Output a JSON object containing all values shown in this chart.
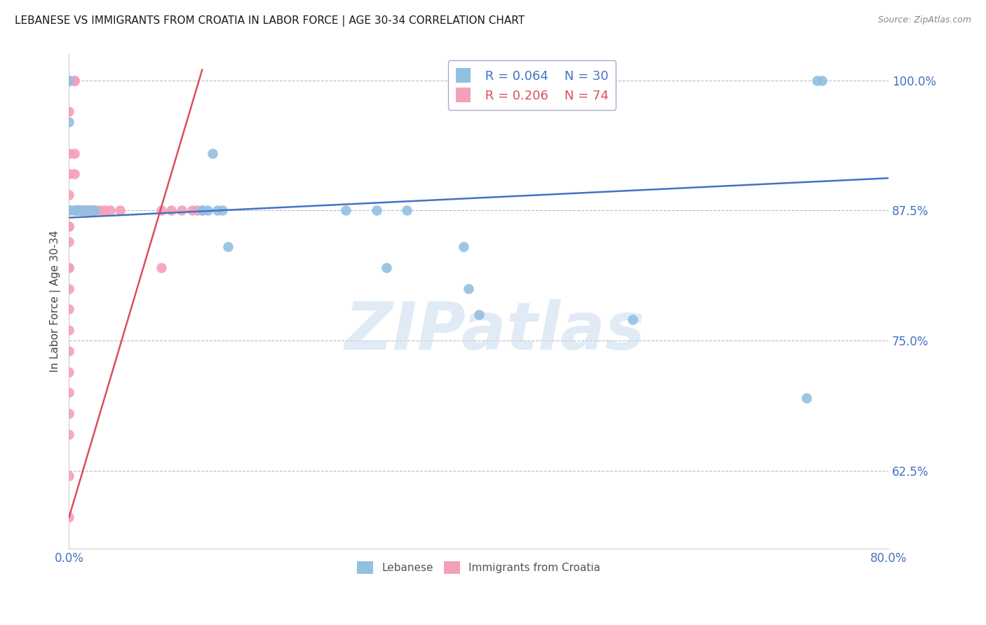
{
  "title": "LEBANESE VS IMMIGRANTS FROM CROATIA IN LABOR FORCE | AGE 30-34 CORRELATION CHART",
  "source": "Source: ZipAtlas.com",
  "ylabel": "In Labor Force | Age 30-34",
  "watermark": "ZIPatlas",
  "x_min": 0.0,
  "x_max": 0.8,
  "y_min": 0.55,
  "y_max": 1.025,
  "x_ticks": [
    0.0,
    0.1,
    0.2,
    0.3,
    0.4,
    0.5,
    0.6,
    0.7,
    0.8
  ],
  "x_tick_labels": [
    "0.0%",
    "",
    "",
    "",
    "",
    "",
    "",
    "",
    "80.0%"
  ],
  "y_ticks": [
    0.625,
    0.75,
    0.875,
    1.0
  ],
  "y_tick_labels": [
    "62.5%",
    "75.0%",
    "87.5%",
    "100.0%"
  ],
  "legend_blue_r": "R = 0.064",
  "legend_blue_n": "N = 30",
  "legend_pink_r": "R = 0.206",
  "legend_pink_n": "N = 74",
  "legend_blue_label": "Lebanese",
  "legend_pink_label": "Immigrants from Croatia",
  "blue_color": "#92c0e0",
  "pink_color": "#f4a0b8",
  "trendline_blue_color": "#4472c4",
  "trendline_pink_color": "#d94f5c",
  "grid_color": "#b8bcc8",
  "blue_points_x": [
    0.0,
    0.0,
    0.0,
    0.005,
    0.005,
    0.006,
    0.007,
    0.008,
    0.01,
    0.013,
    0.015,
    0.02,
    0.025,
    0.13,
    0.135,
    0.14,
    0.145,
    0.15,
    0.155,
    0.27,
    0.3,
    0.31,
    0.33,
    0.385,
    0.39,
    0.4,
    0.55,
    0.72,
    0.73,
    0.735
  ],
  "blue_points_y": [
    1.0,
    0.96,
    0.875,
    0.875,
    0.875,
    0.875,
    0.875,
    0.875,
    0.875,
    0.875,
    0.875,
    0.875,
    0.875,
    0.875,
    0.875,
    0.93,
    0.875,
    0.875,
    0.84,
    0.875,
    0.875,
    0.82,
    0.875,
    0.84,
    0.8,
    0.775,
    0.77,
    0.695,
    1.0,
    1.0
  ],
  "pink_points_x": [
    0.0,
    0.0,
    0.0,
    0.0,
    0.0,
    0.0,
    0.0,
    0.0,
    0.0,
    0.0,
    0.0,
    0.0,
    0.0,
    0.0,
    0.0,
    0.0,
    0.0,
    0.0,
    0.0,
    0.0,
    0.0,
    0.0,
    0.0,
    0.0,
    0.0,
    0.0,
    0.0,
    0.0,
    0.0,
    0.0,
    0.0,
    0.0,
    0.0,
    0.0,
    0.0,
    0.0,
    0.0,
    0.0,
    0.005,
    0.005,
    0.005,
    0.005,
    0.005,
    0.005,
    0.005,
    0.006,
    0.007,
    0.008,
    0.009,
    0.01,
    0.011,
    0.012,
    0.013,
    0.014,
    0.015,
    0.016,
    0.017,
    0.018,
    0.02,
    0.021,
    0.022,
    0.023,
    0.025,
    0.03,
    0.035,
    0.04,
    0.05,
    0.09,
    0.09,
    0.1,
    0.11,
    0.12,
    0.125,
    0.13
  ],
  "pink_points_y": [
    1.0,
    1.0,
    1.0,
    1.0,
    1.0,
    1.0,
    1.0,
    1.0,
    1.0,
    0.97,
    0.93,
    0.91,
    0.89,
    0.875,
    0.875,
    0.875,
    0.875,
    0.875,
    0.875,
    0.875,
    0.875,
    0.875,
    0.875,
    0.86,
    0.86,
    0.845,
    0.82,
    0.82,
    0.8,
    0.78,
    0.76,
    0.74,
    0.72,
    0.7,
    0.68,
    0.66,
    0.62,
    0.58,
    1.0,
    1.0,
    1.0,
    0.93,
    0.91,
    0.875,
    0.875,
    0.875,
    0.875,
    0.875,
    0.875,
    0.875,
    0.875,
    0.875,
    0.875,
    0.875,
    0.875,
    0.875,
    0.875,
    0.875,
    0.875,
    0.875,
    0.875,
    0.875,
    0.875,
    0.875,
    0.875,
    0.875,
    0.875,
    0.82,
    0.875,
    0.875,
    0.875,
    0.875,
    0.875,
    0.875
  ],
  "blue_trendline_x0": 0.0,
  "blue_trendline_y0": 0.868,
  "blue_trendline_x1": 0.8,
  "blue_trendline_y1": 0.906,
  "pink_trendline_x0": 0.0,
  "pink_trendline_y0": 0.58,
  "pink_trendline_x1": 0.13,
  "pink_trendline_y1": 1.01
}
